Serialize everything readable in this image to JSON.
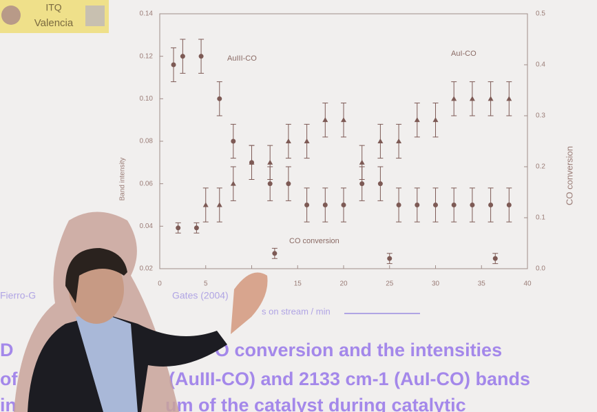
{
  "logo": {
    "line1": "ITQ",
    "line2": "Valencia"
  },
  "citation": "Fierro-G",
  "citation_end": "Gates (2004)",
  "chart_data": {
    "type": "scatter",
    "xlabel": "s on stream / min",
    "ylabel": "Band intensity",
    "y2label": "CO conversion",
    "xlim": [
      0,
      40
    ],
    "xticks": [
      0,
      5,
      10,
      15,
      20,
      25,
      30,
      35,
      40
    ],
    "ylim": [
      0.02,
      0.14
    ],
    "yticks": [
      0.02,
      0.04,
      0.06,
      0.08,
      {
        "value": 0.1,
        "label": "0.10"
      },
      0.12,
      0.14
    ],
    "y2lim": [
      0,
      0.5
    ],
    "y2ticks": [
      {
        "value": 0,
        "label": "0.0"
      },
      0.1,
      0.2,
      0.3,
      0.4,
      0.5
    ],
    "series": [
      {
        "name": "AuIII-CO",
        "color": "#7d5a55",
        "marker": "circle",
        "error": 0.008,
        "x": [
          1.5,
          2.5,
          4.5,
          6.5,
          8,
          10,
          12,
          14,
          16,
          18,
          20,
          22,
          24,
          26,
          28,
          30,
          32,
          34,
          36,
          38
        ],
        "values": [
          0.116,
          0.12,
          0.12,
          0.1,
          0.08,
          0.07,
          0.06,
          0.06,
          0.05,
          0.05,
          0.05,
          0.06,
          0.06,
          0.05,
          0.05,
          0.05,
          0.05,
          0.05,
          0.05,
          0.05
        ]
      },
      {
        "name": "AuI-CO",
        "color": "#7d5a55",
        "marker": "triangle",
        "error": 0.008,
        "x": [
          5,
          6.5,
          8,
          10,
          12,
          14,
          16,
          18,
          20,
          22,
          24,
          26,
          28,
          30,
          32,
          34,
          36,
          38
        ],
        "values": [
          0.05,
          0.05,
          0.06,
          0.07,
          0.07,
          0.08,
          0.08,
          0.09,
          0.09,
          0.07,
          0.08,
          0.08,
          0.09,
          0.09,
          0.1,
          0.1,
          0.1,
          0.1
        ]
      },
      {
        "name": "CO conversion",
        "color": "#7d5a55",
        "marker": "circle",
        "error": 0.01,
        "axis": "y2",
        "x": [
          2,
          4,
          12.5,
          25,
          36.5
        ],
        "values": [
          0.08,
          0.08,
          0.03,
          0.02,
          0.02
        ]
      }
    ]
  },
  "slide_text": [
    "D",
    "O conversion and the intensities",
    "of",
    "(AuIII-CO) and 2133 cm-1 (AuI-CO) bands",
    "in",
    "um of the catalyst during catalytic"
  ]
}
